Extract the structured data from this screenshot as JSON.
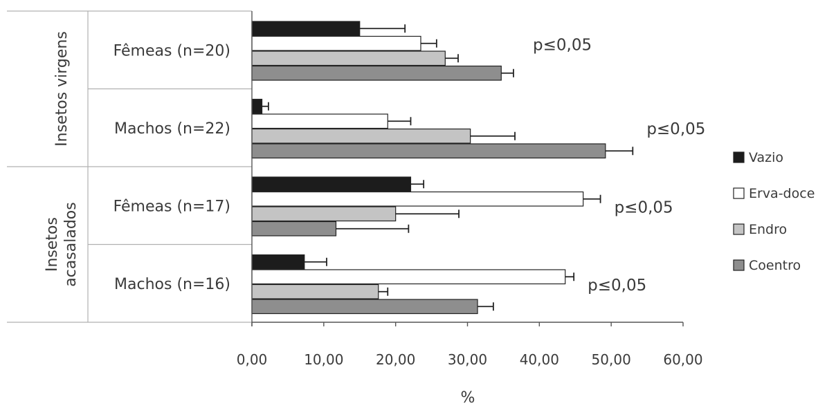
{
  "chart_data": {
    "type": "bar",
    "orientation": "horizontal",
    "xlabel": "%",
    "xlim": [
      0,
      60
    ],
    "xticks": [
      "0,00",
      "10,00",
      "20,00",
      "30,00",
      "40,00",
      "50,00",
      "60,00"
    ],
    "groups": [
      {
        "label": "Insetos virgens",
        "categories": [
          {
            "label": "Fêmeas (n=20)",
            "annotation": "p≤0,05",
            "values": [
              15.0,
              23.5,
              26.9,
              34.7
            ],
            "errors": [
              6.3,
              2.2,
              1.8,
              1.7
            ]
          },
          {
            "label": "Machos (n=22)",
            "annotation": "p≤0,05",
            "values": [
              1.4,
              18.9,
              30.4,
              49.2
            ],
            "errors": [
              0.9,
              3.2,
              6.2,
              3.8
            ]
          }
        ]
      },
      {
        "label": "Insetos acasalados",
        "categories": [
          {
            "label": "Fêmeas (n=17)",
            "annotation": "p≤0,05",
            "values": [
              22.1,
              46.1,
              20.0,
              11.7
            ],
            "errors": [
              1.8,
              2.4,
              8.8,
              10.1
            ]
          },
          {
            "label": "Machos (n=16)",
            "annotation": "p≤0,05",
            "values": [
              7.3,
              43.6,
              17.6,
              31.4
            ],
            "errors": [
              3.1,
              1.2,
              1.3,
              2.2
            ]
          }
        ]
      }
    ],
    "series": [
      {
        "name": "Vazio",
        "color": "#1c1c1c"
      },
      {
        "name": "Erva-doce",
        "color": "#ffffff"
      },
      {
        "name": "Endro",
        "color": "#c4c4c4"
      },
      {
        "name": "Coentro",
        "color": "#8e8e8e"
      }
    ],
    "legend_position": "right",
    "grid": false
  }
}
